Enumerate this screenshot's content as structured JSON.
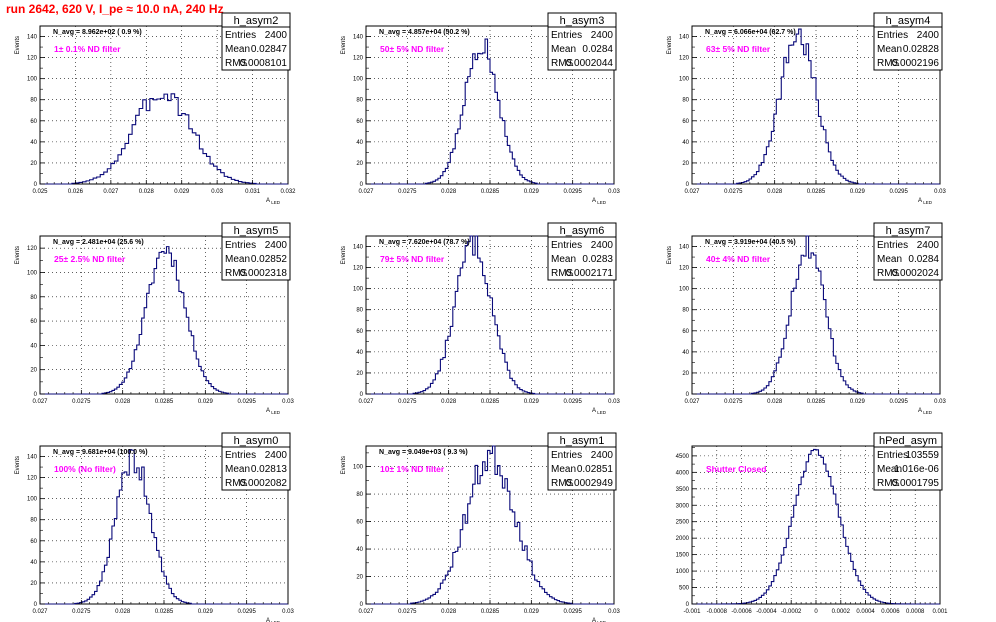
{
  "header": {
    "run_title": "run 2642,   620 V, I_pe ≈ 10.0 nA, 240 Hz"
  },
  "stats_labels": {
    "entries": "Entries",
    "mean": "Mean",
    "rms": "RMS"
  },
  "chart_data": [
    {
      "type": "bar",
      "title": "h_asym2",
      "navg": "N_avg = 8.962e+02 ( 0.9 %)",
      "annotation": "1± 0.1% ND filter",
      "stats": {
        "entries": "2400",
        "mean": "0.02847",
        "rms": "0.0008101"
      },
      "xlabel": "A_{LED}",
      "ylabel": "Events",
      "xlim": [
        0.025,
        0.032
      ],
      "ylim": [
        0,
        150
      ],
      "xticks": [
        0.025,
        0.026,
        0.027,
        0.028,
        0.029,
        0.03,
        0.031,
        0.032
      ],
      "xtick_labels": [
        "0.025",
        "0.026",
        "0.027",
        "0.028",
        "0.029",
        "0.03",
        "0.031",
        "0.032"
      ],
      "yticks": [
        0,
        20,
        40,
        60,
        80,
        100,
        120,
        140
      ],
      "ytick_labels": [
        "0",
        "20",
        "40",
        "60",
        "80",
        "100",
        "120",
        "140"
      ],
      "grid": true,
      "peak": 88,
      "dist": {
        "mean": 0.02847,
        "sigma": 0.0008101,
        "entries": 2400,
        "binw": 0.0001,
        "seed": 3,
        "noise": 0.12
      }
    },
    {
      "type": "bar",
      "title": "h_asym3",
      "navg": "N_avg = 4.857e+04 (50.2 %)",
      "annotation": "50± 5% ND filter",
      "stats": {
        "entries": "2400",
        "mean": "0.0284",
        "rms": "0.0002044"
      },
      "xlabel": "A_{LED}",
      "ylabel": "Events",
      "xlim": [
        0.027,
        0.03
      ],
      "ylim": [
        0,
        150
      ],
      "xticks": [
        0.027,
        0.0275,
        0.028,
        0.0285,
        0.029,
        0.0295,
        0.03
      ],
      "xtick_labels": [
        "0.027",
        "0.0275",
        "0.028",
        "0.0285",
        "0.029",
        "0.0295",
        "0.03"
      ],
      "yticks": [
        0,
        20,
        40,
        60,
        80,
        100,
        120,
        140
      ],
      "ytick_labels": [
        "0",
        "20",
        "40",
        "60",
        "80",
        "100",
        "120",
        "140"
      ],
      "grid": true,
      "peak": 135,
      "dist": {
        "mean": 0.0284,
        "sigma": 0.0002044,
        "entries": 2400,
        "binw": 3e-05,
        "seed": 5,
        "noise": 0.1
      }
    },
    {
      "type": "bar",
      "title": "h_asym4",
      "navg": "N_avg = 6.066e+04 (62.7 %)",
      "annotation": "63± 5% ND filter",
      "stats": {
        "entries": "2400",
        "mean": "0.02828",
        "rms": "0.0002196"
      },
      "xlabel": "A_{LED}",
      "ylabel": "Events",
      "xlim": [
        0.027,
        0.03
      ],
      "ylim": [
        0,
        150
      ],
      "xticks": [
        0.027,
        0.0275,
        0.028,
        0.0285,
        0.029,
        0.0295,
        0.03
      ],
      "xtick_labels": [
        "0.027",
        "0.0275",
        "0.028",
        "0.0285",
        "0.029",
        "0.0295",
        "0.03"
      ],
      "yticks": [
        0,
        20,
        40,
        60,
        80,
        100,
        120,
        140
      ],
      "ytick_labels": [
        "0",
        "20",
        "40",
        "60",
        "80",
        "100",
        "120",
        "140"
      ],
      "grid": true,
      "peak": 142,
      "dist": {
        "mean": 0.02828,
        "sigma": 0.0002196,
        "entries": 2400,
        "binw": 3e-05,
        "seed": 7,
        "noise": 0.1
      }
    },
    {
      "type": "bar",
      "title": "h_asym5",
      "navg": "N_avg = 2.481e+04 (25.6 %)",
      "annotation": "25± 2.5% ND filter",
      "stats": {
        "entries": "2400",
        "mean": "0.02852",
        "rms": "0.0002318"
      },
      "xlabel": "A_{LED}",
      "ylabel": "Events",
      "xlim": [
        0.027,
        0.03
      ],
      "ylim": [
        0,
        130
      ],
      "xticks": [
        0.027,
        0.0275,
        0.028,
        0.0285,
        0.029,
        0.0295,
        0.03
      ],
      "xtick_labels": [
        "0.027",
        "0.0275",
        "0.028",
        "0.0285",
        "0.029",
        "0.0295",
        "0.03"
      ],
      "yticks": [
        0,
        20,
        40,
        60,
        80,
        100,
        120
      ],
      "ytick_labels": [
        "0",
        "20",
        "40",
        "60",
        "80",
        "100",
        "120"
      ],
      "grid": true,
      "peak": 120,
      "dist": {
        "mean": 0.02852,
        "sigma": 0.0002318,
        "entries": 2400,
        "binw": 3e-05,
        "seed": 11,
        "noise": 0.07
      }
    },
    {
      "type": "bar",
      "title": "h_asym6",
      "navg": "N_avg = 7.620e+04 (78.7 %)",
      "annotation": "79± 5% ND filter",
      "stats": {
        "entries": "2400",
        "mean": "0.0283",
        "rms": "0.0002171"
      },
      "xlabel": "A_{LED}",
      "ylabel": "Events",
      "xlim": [
        0.027,
        0.03
      ],
      "ylim": [
        0,
        150
      ],
      "xticks": [
        0.027,
        0.0275,
        0.028,
        0.0285,
        0.029,
        0.0295,
        0.03
      ],
      "xtick_labels": [
        "0.027",
        "0.0275",
        "0.028",
        "0.0285",
        "0.029",
        "0.0295",
        "0.03"
      ],
      "yticks": [
        0,
        20,
        40,
        60,
        80,
        100,
        120,
        140
      ],
      "ytick_labels": [
        "0",
        "20",
        "40",
        "60",
        "80",
        "100",
        "120",
        "140"
      ],
      "grid": true,
      "peak": 145,
      "dist": {
        "mean": 0.0283,
        "sigma": 0.0002171,
        "entries": 2400,
        "binw": 3e-05,
        "seed": 13,
        "noise": 0.1
      }
    },
    {
      "type": "bar",
      "title": "h_asym7",
      "navg": "N_avg = 3.919e+04 (40.5 %)",
      "annotation": "40± 4% ND filter",
      "stats": {
        "entries": "2400",
        "mean": "0.0284",
        "rms": "0.0002024"
      },
      "xlabel": "A_{LED}",
      "ylabel": "Events",
      "xlim": [
        0.027,
        0.03
      ],
      "ylim": [
        0,
        150
      ],
      "xticks": [
        0.027,
        0.0275,
        0.028,
        0.0285,
        0.029,
        0.0295,
        0.03
      ],
      "xtick_labels": [
        "0.027",
        "0.0275",
        "0.028",
        "0.0285",
        "0.029",
        "0.0295",
        "0.03"
      ],
      "yticks": [
        0,
        20,
        40,
        60,
        80,
        100,
        120,
        140
      ],
      "ytick_labels": [
        "0",
        "20",
        "40",
        "60",
        "80",
        "100",
        "120",
        "140"
      ],
      "grid": true,
      "peak": 143,
      "dist": {
        "mean": 0.0284,
        "sigma": 0.0002024,
        "entries": 2400,
        "binw": 3e-05,
        "seed": 17,
        "noise": 0.1
      }
    },
    {
      "type": "bar",
      "title": "h_asym0",
      "navg": "N_avg = 9.681e+04 (100.0 %)",
      "annotation": "100% (No filter)",
      "stats": {
        "entries": "2400",
        "mean": "0.02813",
        "rms": "0.0002082"
      },
      "xlabel": "A_{LED}",
      "ylabel": "Events",
      "xlim": [
        0.027,
        0.03
      ],
      "ylim": [
        0,
        150
      ],
      "xticks": [
        0.027,
        0.0275,
        0.028,
        0.0285,
        0.029,
        0.0295,
        0.03
      ],
      "xtick_labels": [
        "0.027",
        "0.0275",
        "0.028",
        "0.0285",
        "0.029",
        "0.0295",
        "0.03"
      ],
      "yticks": [
        0,
        20,
        40,
        60,
        80,
        100,
        120,
        140
      ],
      "ytick_labels": [
        "0",
        "20",
        "40",
        "60",
        "80",
        "100",
        "120",
        "140"
      ],
      "grid": true,
      "peak": 138,
      "dist": {
        "mean": 0.02813,
        "sigma": 0.0002082,
        "entries": 2400,
        "binw": 3e-05,
        "seed": 19,
        "noise": 0.1
      }
    },
    {
      "type": "bar",
      "title": "h_asym1",
      "navg": "N_avg = 9.049e+03 ( 9.3 %)",
      "annotation": "10± 1% ND filter",
      "stats": {
        "entries": "2400",
        "mean": "0.02851",
        "rms": "0.0002949"
      },
      "xlabel": "A_{LED}",
      "ylabel": "Events",
      "xlim": [
        0.027,
        0.03
      ],
      "ylim": [
        0,
        115
      ],
      "xticks": [
        0.027,
        0.0275,
        0.028,
        0.0285,
        0.029,
        0.0295,
        0.03
      ],
      "xtick_labels": [
        "0.027",
        "0.0275",
        "0.028",
        "0.0285",
        "0.029",
        "0.0295",
        "0.03"
      ],
      "yticks": [
        0,
        20,
        40,
        60,
        80,
        100
      ],
      "ytick_labels": [
        "0",
        "20",
        "40",
        "60",
        "80",
        "100"
      ],
      "grid": true,
      "peak": 108,
      "dist": {
        "mean": 0.02851,
        "sigma": 0.0002949,
        "entries": 2400,
        "binw": 3e-05,
        "seed": 23,
        "noise": 0.12
      }
    },
    {
      "type": "bar",
      "title": "hPed_asym",
      "navg": "",
      "annotation": "Shutter Closed",
      "stats": {
        "entries": "103559",
        "mean": "1.016e-06",
        "rms": "0.0001795"
      },
      "xlabel": "",
      "ylabel": "",
      "xlim": [
        -0.001,
        0.001
      ],
      "ylim": [
        0,
        4800
      ],
      "xticks": [
        -0.001,
        -0.0008,
        -0.0006,
        -0.0004,
        -0.0002,
        0,
        0.0002,
        0.0004,
        0.0006,
        0.0008,
        0.001
      ],
      "xtick_labels": [
        "-0.001",
        "-0.0008",
        "-0.0006",
        "-0.0004",
        "-0.0002",
        "0",
        "0.0002",
        "0.0004",
        "0.0006",
        "0.0008",
        "0.001"
      ],
      "yticks": [
        0,
        500,
        1000,
        1500,
        2000,
        2500,
        3000,
        3500,
        4000,
        4500
      ],
      "ytick_labels": [
        "0",
        "500",
        "1000",
        "1500",
        "2000",
        "2500",
        "3000",
        "3500",
        "4000",
        "4500"
      ],
      "grid": true,
      "peak": 4650,
      "dist": {
        "mean": 1e-06,
        "sigma": 0.0001795,
        "entries": 103559,
        "binw": 2e-05,
        "seed": 29,
        "noise": 0.02
      }
    }
  ]
}
